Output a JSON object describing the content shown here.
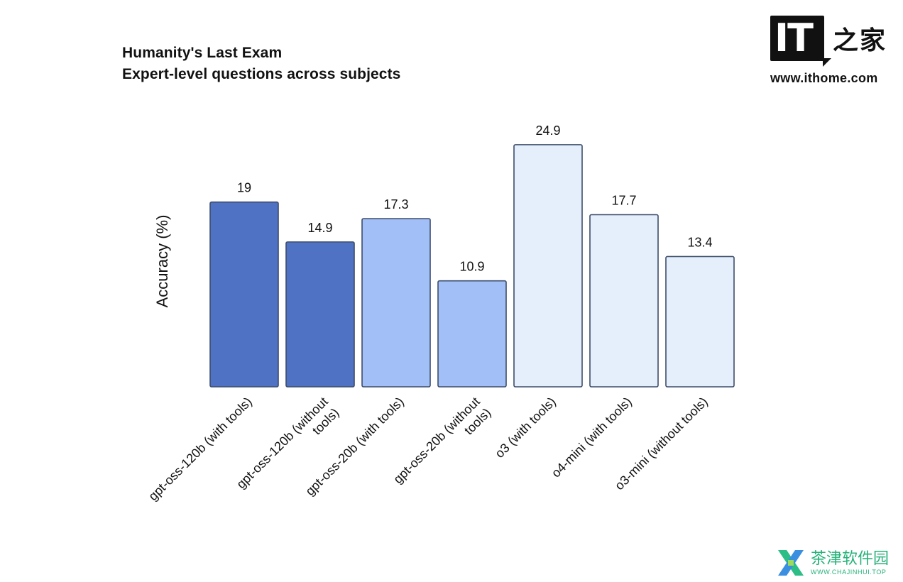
{
  "header": {
    "title": "Humanity's Last Exam",
    "subtitle": "Expert-level questions across subjects"
  },
  "logo": {
    "it_text": "IT",
    "zh_text": "之家",
    "url": "www.ithome.com"
  },
  "watermark": {
    "zh_text": "茶津软件园",
    "en_text": "WWW.CHAJINHUI.TOP",
    "color": "#27b27a"
  },
  "chart_data": {
    "type": "bar",
    "title": "Humanity's Last Exam",
    "subtitle": "Expert-level questions across subjects",
    "xlabel": "",
    "ylabel": "Accuracy (%)",
    "ylim": [
      0,
      25
    ],
    "grid": false,
    "legend": "none",
    "categories": [
      "gpt-oss-120b (with tools)",
      "gpt-oss-120b (without tools)",
      "gpt-oss-20b (with tools)",
      "gpt-oss-20b (without tools)",
      "o3 (with tools)",
      "o4-mini (with tools)",
      "o3-mini (without tools)"
    ],
    "tick_lines": [
      [
        "gpt-oss-120b (with tools)"
      ],
      [
        "gpt-oss-120b (without",
        "tools)"
      ],
      [
        "gpt-oss-20b (with tools)"
      ],
      [
        "gpt-oss-20b (without",
        "tools)"
      ],
      [
        "o3 (with tools)"
      ],
      [
        "o4-mini (with tools)"
      ],
      [
        "o3-mini (without tools)"
      ]
    ],
    "values": [
      19,
      14.9,
      17.3,
      10.9,
      24.9,
      17.7,
      13.4
    ],
    "value_labels": [
      "19",
      "14.9",
      "17.3",
      "10.9",
      "24.9",
      "17.7",
      "13.4"
    ],
    "colors": [
      "#4f72c4",
      "#4f72c4",
      "#a2bff8",
      "#a2bff8",
      "#e5effb",
      "#e5effb",
      "#e5effb"
    ],
    "bar_outline_color": "#3d4d6b"
  }
}
